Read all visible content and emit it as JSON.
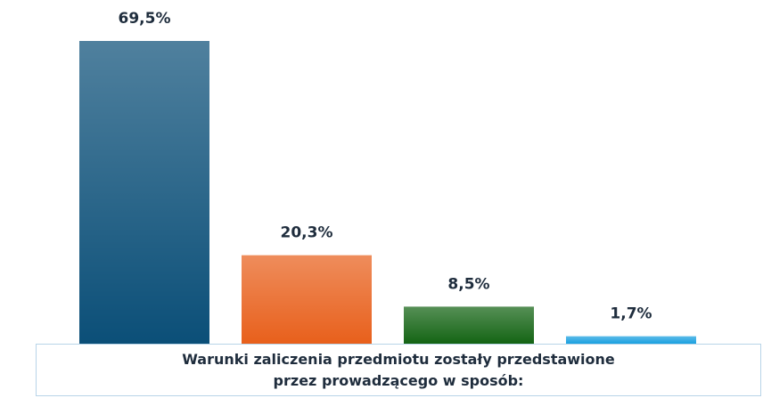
{
  "chart_data": {
    "type": "bar",
    "title": "Warunki zaliczenia przedmiotu zostały przedstawione przez prowadzącego w sposób:",
    "categories": [
      null,
      null,
      null,
      null
    ],
    "values": [
      69.5,
      20.3,
      8.5,
      1.7
    ],
    "value_labels": [
      "69,5%",
      "20,3%",
      "8,5%",
      "1,7%"
    ],
    "colors": [
      "#0b4f78",
      "#e8601c",
      "#146414",
      "#1aa0e0"
    ],
    "grid": false
  }
}
